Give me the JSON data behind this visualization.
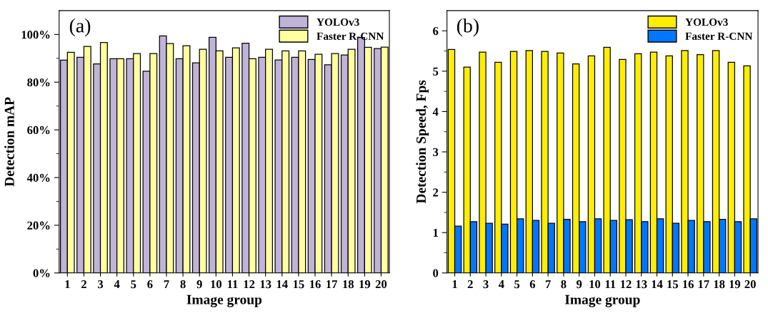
{
  "chart_data": [
    {
      "type": "bar",
      "xlabel": "Image group",
      "ylabel": "Detection mAP",
      "annotations": [
        "(a)"
      ],
      "legend": "top right",
      "categories": [
        "1",
        "2",
        "3",
        "4",
        "5",
        "6",
        "7",
        "8",
        "9",
        "10",
        "11",
        "12",
        "13",
        "14",
        "15",
        "16",
        "17",
        "18",
        "19",
        "20"
      ],
      "series": [
        {
          "name": "YOLOv3",
          "color": "#c0b3d8",
          "values": [
            89.2,
            90.4,
            87.7,
            89.8,
            89.8,
            84.6,
            99.4,
            89.8,
            88.1,
            98.8,
            90.4,
            96.3,
            90.4,
            89.3,
            90.4,
            89.5,
            87.3,
            91.4,
            98.7,
            94.1
          ]
        },
        {
          "name": "Faster R-CNN",
          "color": "#ffffa0",
          "values": [
            92.5,
            95.0,
            96.6,
            89.8,
            92.0,
            92.0,
            96.2,
            95.3,
            93.8,
            93.1,
            94.4,
            89.8,
            93.8,
            93.1,
            93.1,
            91.7,
            92.0,
            93.8,
            94.6,
            94.7
          ]
        }
      ],
      "ylim": [
        0,
        110
      ],
      "yticks": [
        {
          "value": 0,
          "label": "0%"
        },
        {
          "value": 10,
          "label": null
        },
        {
          "value": 20,
          "label": "20%"
        },
        {
          "value": 30,
          "label": null
        },
        {
          "value": 40,
          "label": "40%"
        },
        {
          "value": 50,
          "label": null
        },
        {
          "value": 60,
          "label": "60%"
        },
        {
          "value": 70,
          "label": null
        },
        {
          "value": 80,
          "label": "80%"
        },
        {
          "value": 90,
          "label": null
        },
        {
          "value": 100,
          "label": "100%"
        }
      ]
    },
    {
      "type": "bar",
      "xlabel": "Image group",
      "ylabel": "Detection Speed, Fps",
      "annotations": [
        "(b)"
      ],
      "legend": "top right",
      "categories": [
        "1",
        "2",
        "3",
        "4",
        "5",
        "6",
        "7",
        "8",
        "9",
        "10",
        "11",
        "12",
        "13",
        "14",
        "15",
        "16",
        "17",
        "18",
        "19",
        "20"
      ],
      "series": [
        {
          "name": "YOLOv3",
          "color": "#ffee00",
          "values": [
            5.54,
            5.1,
            5.47,
            5.22,
            5.49,
            5.51,
            5.49,
            5.45,
            5.18,
            5.38,
            5.59,
            5.29,
            5.43,
            5.47,
            5.38,
            5.51,
            5.41,
            5.51,
            5.22,
            5.13
          ]
        },
        {
          "name": "Faster R-CNN",
          "color": "#0077ff",
          "values": [
            1.16,
            1.27,
            1.23,
            1.21,
            1.34,
            1.3,
            1.23,
            1.33,
            1.27,
            1.34,
            1.3,
            1.32,
            1.27,
            1.34,
            1.23,
            1.3,
            1.27,
            1.33,
            1.27,
            1.34
          ]
        }
      ],
      "ylim": [
        0,
        6.5
      ],
      "yticks": [
        0,
        {
          "value": 0.5,
          "label": null
        },
        1,
        {
          "value": 1.5,
          "label": null
        },
        2,
        {
          "value": 2.5,
          "label": null
        },
        3,
        {
          "value": 3.5,
          "label": null
        },
        4,
        {
          "value": 4.5,
          "label": null
        },
        5,
        {
          "value": 5.5,
          "label": null
        },
        6
      ]
    }
  ]
}
